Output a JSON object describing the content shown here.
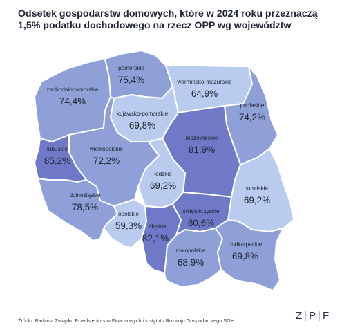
{
  "title": {
    "line1": "Odsetek gospodarstw domowych, które w 2024 roku przeznaczą",
    "line2": "1,5% podatku dochodowego na rzecz OPP wg województw"
  },
  "source": "Źródło: Badania Związku Przedsiębiorstw Finansowych i Instytutu Rozwoju Gospodarczego SGH.",
  "logo": {
    "z": "Z",
    "p": "P",
    "f": "F",
    "separator": "|"
  },
  "colors": {
    "low": "#b9cbee",
    "mid": "#8f9fd8",
    "high": "#6f79c8",
    "border": "#ffffff"
  },
  "regions": {
    "pomorskie": {
      "name": "pomorskie",
      "value": "75,4%"
    },
    "warminsko_mazurskie": {
      "name": "warmińsko-mazurskie",
      "value": "64,9%"
    },
    "zachodniopomorskie": {
      "name": "zachodniopomorskie",
      "value": "74,4%"
    },
    "kujawsko_pomorskie": {
      "name": "kujawsko-pomorskie",
      "value": "69,8%"
    },
    "podlaskie": {
      "name": "podlaskie",
      "value": "74,2%"
    },
    "mazowieckie": {
      "name": "mazowieckie",
      "value": "81,9%"
    },
    "lubuskie": {
      "name": "lubuskie",
      "value": "85,2%"
    },
    "wielkopolskie": {
      "name": "wielkopolskie",
      "value": "72,2%"
    },
    "lodzkie": {
      "name": "łódzkie",
      "value": "69,2%"
    },
    "lubelskie": {
      "name": "lubelskie",
      "value": "69,2%"
    },
    "dolnoslaskie": {
      "name": "dolnośląskie",
      "value": "78,5%"
    },
    "opolskie": {
      "name": "opolskie",
      "value": "59,3%"
    },
    "slaskie": {
      "name": "śląskie",
      "value": "82,1%"
    },
    "swietokrzyskie": {
      "name": "świętokrzyskie",
      "value": "80,6%"
    },
    "malopolskie": {
      "name": "małopolskie",
      "value": "68,9%"
    },
    "podkarpackie": {
      "name": "podkarpackie",
      "value": "69,8%"
    }
  }
}
